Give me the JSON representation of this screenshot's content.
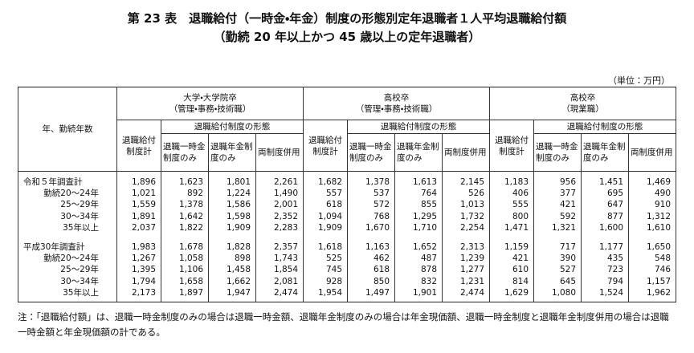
{
  "header": {
    "title": "第 23 表　退職給付（一時金・年金）制度の形態別定年退職者１人平均退職給付額",
    "subtitle": "（勤続 20 年以上かつ 45 歳以上の定年退職者）",
    "unit": "（単位：万円）"
  },
  "table": {
    "row_header": "年、勤続年数",
    "groups": [
      {
        "name": "大学・大学院卒",
        "sub": "（管理・事務・技術職）"
      },
      {
        "name": "高校卒",
        "sub": "（管理・事務・技術職）"
      },
      {
        "name": "高校卒",
        "sub": "（現業職）"
      }
    ],
    "total_header": "退職給付制度計",
    "form_header": "退職給付制度の形態",
    "columns": [
      "退職一時金制度のみ",
      "退職年金制度のみ",
      "両制度併用"
    ],
    "blocks": [
      {
        "rows": [
          {
            "label": "令和５年調査計",
            "values": [
              "1,896",
              "1,623",
              "1,801",
              "2,261",
              "1,682",
              "1,378",
              "1,613",
              "2,145",
              "1,183",
              "956",
              "1,451",
              "1,469"
            ]
          },
          {
            "label": "勤続20～24年",
            "values": [
              "1,021",
              "892",
              "1,224",
              "1,490",
              "557",
              "537",
              "764",
              "526",
              "406",
              "377",
              "695",
              "490"
            ]
          },
          {
            "label": "25～29年",
            "values": [
              "1,559",
              "1,378",
              "1,586",
              "2,001",
              "618",
              "572",
              "855",
              "1,013",
              "555",
              "421",
              "647",
              "910"
            ]
          },
          {
            "label": "30～34年",
            "values": [
              "1,891",
              "1,642",
              "1,598",
              "2,352",
              "1,094",
              "768",
              "1,295",
              "1,732",
              "800",
              "592",
              "877",
              "1,312"
            ]
          },
          {
            "label": "35年以上",
            "values": [
              "2,037",
              "1,822",
              "1,909",
              "2,283",
              "1,909",
              "1,670",
              "1,710",
              "2,254",
              "1,471",
              "1,321",
              "1,600",
              "1,610"
            ]
          }
        ]
      },
      {
        "rows": [
          {
            "label": "平成30年調査計",
            "values": [
              "1,983",
              "1,678",
              "1,828",
              "2,357",
              "1,618",
              "1,163",
              "1,652",
              "2,313",
              "1,159",
              "717",
              "1,177",
              "1,650"
            ]
          },
          {
            "label": "勤続20～24年",
            "values": [
              "1,267",
              "1,058",
              "898",
              "1,743",
              "525",
              "462",
              "487",
              "1,239",
              "421",
              "390",
              "435",
              "548"
            ]
          },
          {
            "label": "25～29年",
            "values": [
              "1,395",
              "1,106",
              "1,458",
              "1,854",
              "745",
              "618",
              "878",
              "1,277",
              "610",
              "527",
              "723",
              "746"
            ]
          },
          {
            "label": "30～34年",
            "values": [
              "1,794",
              "1,658",
              "1,662",
              "2,081",
              "928",
              "850",
              "832",
              "1,231",
              "814",
              "645",
              "794",
              "1,157"
            ]
          },
          {
            "label": "35年以上",
            "values": [
              "2,173",
              "1,897",
              "1,947",
              "2,474",
              "1,954",
              "1,497",
              "1,901",
              "2,474",
              "1,629",
              "1,080",
              "1,524",
              "1,962"
            ]
          }
        ]
      }
    ]
  },
  "note": "注：「退職給付額」は、退職一時金制度のみの場合は退職一時金額、退職年金制度のみの場合は年金現価額、退職一時金制度と退職年金制度併用の場合は退職一時金額と年金現価額の計である。"
}
